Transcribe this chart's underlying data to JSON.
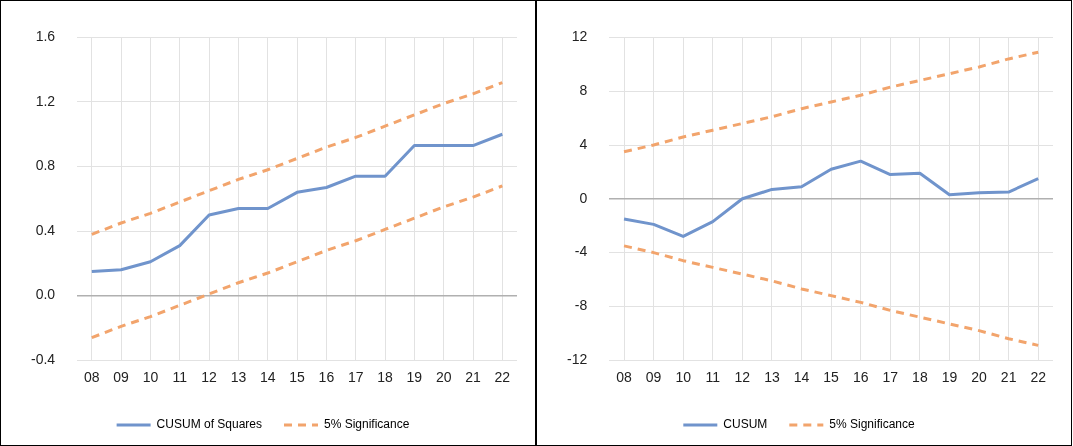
{
  "chart_data": [
    {
      "type": "line",
      "categories": [
        "08",
        "09",
        "10",
        "11",
        "12",
        "13",
        "14",
        "15",
        "16",
        "17",
        "18",
        "19",
        "20",
        "21",
        "22"
      ],
      "series": [
        {
          "name": "CUSUM of Squares",
          "color": "#7094cc",
          "line_style": "solid",
          "values": [
            0.15,
            0.16,
            0.21,
            0.31,
            0.5,
            0.54,
            0.54,
            0.64,
            0.67,
            0.74,
            0.74,
            0.93,
            0.93,
            0.93,
            1.0
          ]
        },
        {
          "name": "5% Significance",
          "color": "#f2a46c",
          "line_style": "dashed",
          "values": [
            0.38,
            0.45,
            0.51,
            0.58,
            0.65,
            0.72,
            0.78,
            0.85,
            0.92,
            0.98,
            1.05,
            1.12,
            1.19,
            1.25,
            1.32
          ]
        },
        {
          "color": "#f2a46c",
          "line_style": "dashed",
          "values": [
            -0.26,
            -0.19,
            -0.13,
            -0.06,
            0.01,
            0.08,
            0.14,
            0.21,
            0.28,
            0.34,
            0.41,
            0.48,
            0.55,
            0.61,
            0.68
          ]
        }
      ],
      "ylim": [
        -0.4,
        1.6
      ],
      "yticks": [
        -0.4,
        {
          "value": 0,
          "label": "0.0"
        },
        0.4,
        0.8,
        1.2,
        1.6
      ],
      "grid": true,
      "legend": "bottom",
      "marker": "none"
    },
    {
      "type": "line",
      "categories": [
        "08",
        "09",
        "10",
        "11",
        "12",
        "13",
        "14",
        "15",
        "16",
        "17",
        "18",
        "19",
        "20",
        "21",
        "22"
      ],
      "series": [
        {
          "name": "CUSUM",
          "color": "#7094cc",
          "line_style": "solid",
          "values": [
            -1.5,
            -1.9,
            -2.8,
            -1.7,
            0,
            0.7,
            0.9,
            2.2,
            2.8,
            1.8,
            1.9,
            0.3,
            0.45,
            0.5,
            1.5
          ]
        },
        {
          "name": "5% Significance",
          "color": "#f2a46c",
          "line_style": "dashed",
          "values": [
            3.5,
            4.0,
            4.6,
            5.1,
            5.6,
            6.1,
            6.7,
            7.2,
            7.7,
            8.3,
            8.8,
            9.3,
            9.8,
            10.4,
            10.9
          ]
        },
        {
          "color": "#f2a46c",
          "line_style": "dashed",
          "values": [
            -3.5,
            -4.0,
            -4.6,
            -5.1,
            -5.6,
            -6.1,
            -6.7,
            -7.2,
            -7.7,
            -8.3,
            -8.8,
            -9.3,
            -9.8,
            -10.4,
            -10.9
          ]
        }
      ],
      "ylim": [
        -12,
        12
      ],
      "yticks": [
        -12,
        -8,
        -4,
        0,
        4,
        8,
        12
      ],
      "grid": true,
      "legend": "bottom",
      "marker": "none"
    }
  ]
}
